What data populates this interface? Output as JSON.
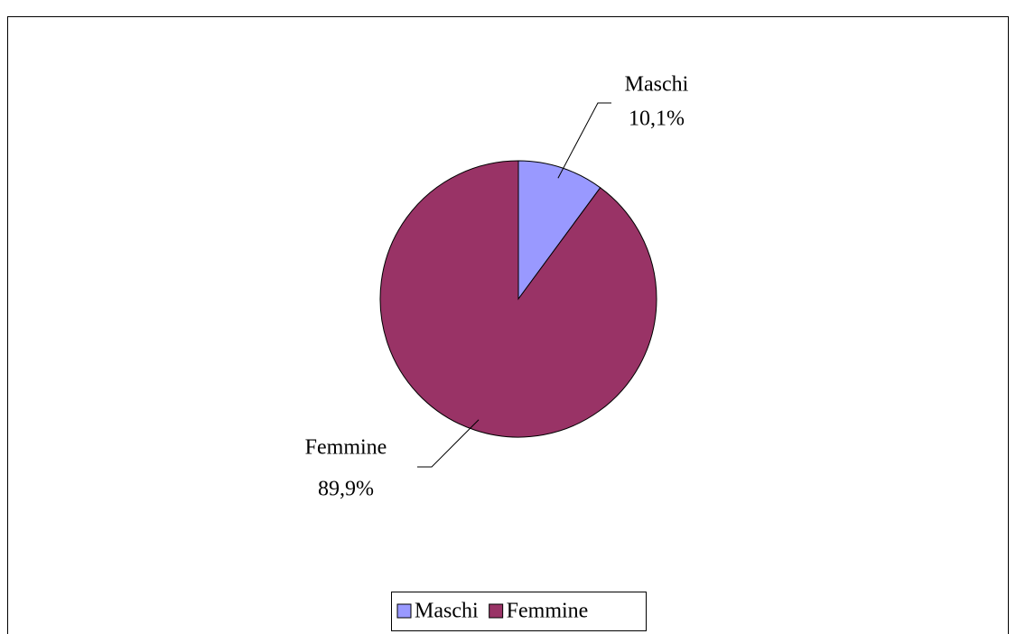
{
  "chart_data": {
    "type": "pie",
    "categories": [
      "Maschi",
      "Femmine"
    ],
    "values": [
      10.1,
      89.9
    ],
    "value_labels": [
      "10,1%",
      "89,9%"
    ],
    "colors": [
      "#9999ff",
      "#993366"
    ],
    "legend": "bottom"
  }
}
